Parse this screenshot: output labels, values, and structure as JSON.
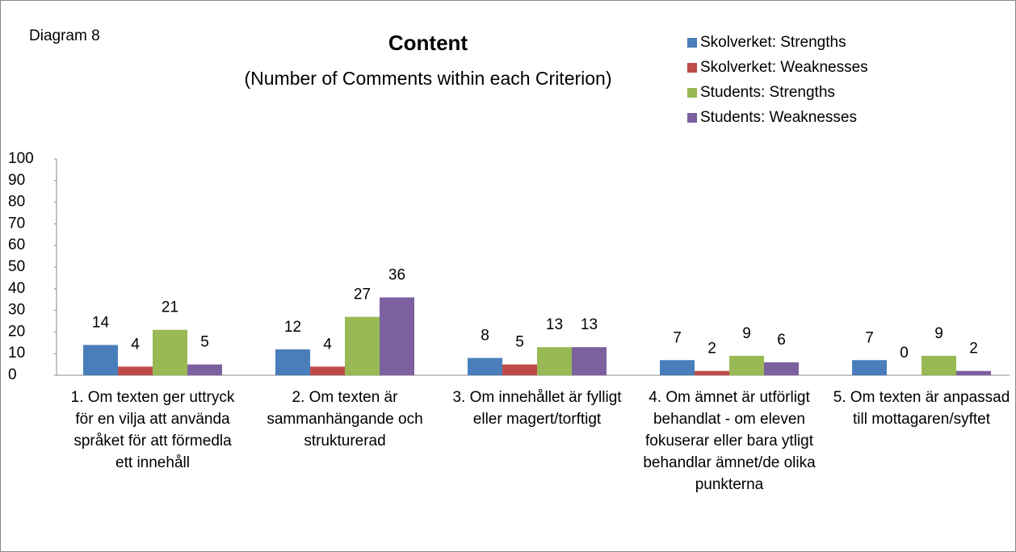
{
  "chart_data": {
    "type": "bar",
    "annotation": "Diagram 8",
    "title": "Content",
    "subtitle": "(Number of Comments within each Criterion)",
    "categories": [
      "1. Om texten ger uttryck för en vilja att använda språket för att förmedla ett innehåll",
      "2. Om texten är sammanhängande och strukturerad",
      "3. Om innehållet är fylligt eller magert/torftigt",
      "4. Om ämnet är utförligt behandlat - om eleven fokuserar eller bara ytligt behandlar ämnet/de olika punkterna",
      "5. Om texten är anpassad till mottagaren/syftet"
    ],
    "series": [
      {
        "name": "Skolverket: Strengths",
        "color": "#4a7ebb",
        "values": [
          14,
          12,
          8,
          7,
          7
        ]
      },
      {
        "name": "Skolverket: Weaknesses",
        "color": "#be4b48",
        "values": [
          4,
          4,
          5,
          2,
          0
        ]
      },
      {
        "name": "Students: Strengths",
        "color": "#98b954",
        "values": [
          21,
          27,
          13,
          9,
          9
        ]
      },
      {
        "name": "Students: Weaknesses",
        "color": "#7d60a0",
        "values": [
          5,
          36,
          13,
          6,
          2
        ]
      }
    ],
    "ylim": [
      0,
      100
    ],
    "yticks": [
      0,
      10,
      20,
      30,
      40,
      50,
      60,
      70,
      80,
      90,
      100
    ],
    "grid": false,
    "legend": "top-right"
  }
}
